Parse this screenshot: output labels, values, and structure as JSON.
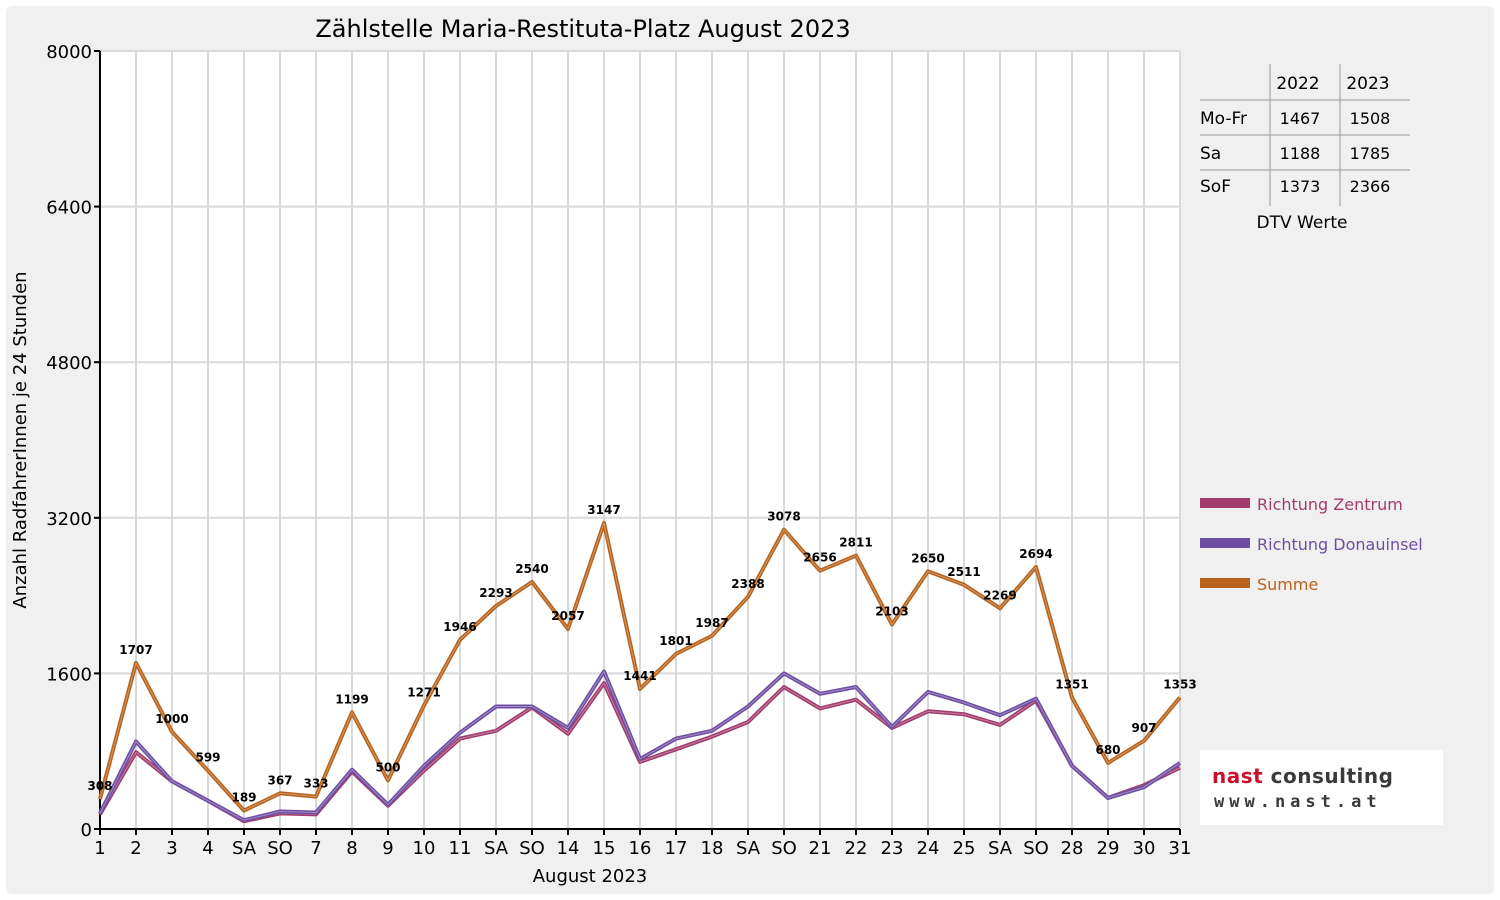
{
  "chart_data": {
    "type": "line",
    "title": "Zählstelle Maria-Restituta-Platz August 2023",
    "xlabel": "August 2023",
    "ylabel": "Anzahl RadfahrerInnen je 24 Stunden",
    "ylim": [
      0,
      8000
    ],
    "yticks": [
      "0",
      "1600",
      "3200",
      "4800",
      "6400",
      "8000"
    ],
    "grid": "vertical+horizontal",
    "legend_position": "right",
    "categories": [
      "1",
      "2",
      "3",
      "4",
      "SA",
      "SO",
      "7",
      "8",
      "9",
      "10",
      "11",
      "SA",
      "SO",
      "14",
      "15",
      "16",
      "17",
      "18",
      "SA",
      "SO",
      "21",
      "22",
      "23",
      "24",
      "25",
      "SA",
      "SO",
      "28",
      "29",
      "30",
      "31"
    ],
    "red_categories": [
      5,
      12,
      14,
      19,
      26
    ],
    "series": [
      {
        "name": "Richtung Zentrum",
        "color": "#a23b6c",
        "values": [
          150,
          790,
          490,
          290,
          80,
          160,
          150,
          590,
          240,
          600,
          930,
          1010,
          1250,
          980,
          1500,
          690,
          820,
          950,
          1100,
          1460,
          1240,
          1330,
          1040,
          1210,
          1180,
          1070,
          1320,
          650,
          320,
          450,
          630
        ]
      },
      {
        "name": "Richtung Donauinsel",
        "color": "#6e4ea3",
        "values": [
          160,
          900,
          490,
          290,
          90,
          180,
          170,
          610,
          250,
          650,
          990,
          1260,
          1260,
          1040,
          1620,
          720,
          930,
          1010,
          1260,
          1600,
          1390,
          1460,
          1050,
          1410,
          1300,
          1170,
          1340,
          650,
          320,
          430,
          680
        ]
      },
      {
        "name": "Summe",
        "color": "#b8621b",
        "values": [
          308,
          1707,
          1000,
          599,
          189,
          367,
          333,
          1199,
          500,
          1271,
          1946,
          2293,
          2540,
          2057,
          3147,
          1441,
          1801,
          1987,
          2388,
          3078,
          2656,
          2811,
          2103,
          2650,
          2511,
          2269,
          2694,
          1351,
          680,
          907,
          1353
        ]
      }
    ],
    "data_labels": [
      "308",
      "1707",
      "1000",
      "599",
      "189",
      "367",
      "333",
      "1199",
      "500",
      "1271",
      "1946",
      "2293",
      "2540",
      "2057",
      "3147",
      "1441",
      "1801",
      "1987",
      "2388",
      "3078",
      "2656",
      "2811",
      "2103",
      "2650",
      "2511",
      "2269",
      "2694",
      "1351",
      "680",
      "907",
      "1353"
    ]
  },
  "dtv_table": {
    "caption": "DTV Werte",
    "columns": [
      "2022",
      "2023"
    ],
    "rows": [
      {
        "label": "Mo-Fr",
        "v2022": "1467",
        "v2023": "1508"
      },
      {
        "label": "Sa",
        "v2022": "1188",
        "v2023": "1785"
      },
      {
        "label": "SoF",
        "v2022": "1373",
        "v2023": "2366"
      }
    ]
  },
  "logo": {
    "line1_a": "nast",
    "line1_b": " consulting",
    "line2": "www.nast.at"
  },
  "colors": {
    "grid": "#d9d9d9",
    "holiday": "#e00000",
    "plot_bg": "#ffffff",
    "frame_bg": "#f0f0f0"
  }
}
